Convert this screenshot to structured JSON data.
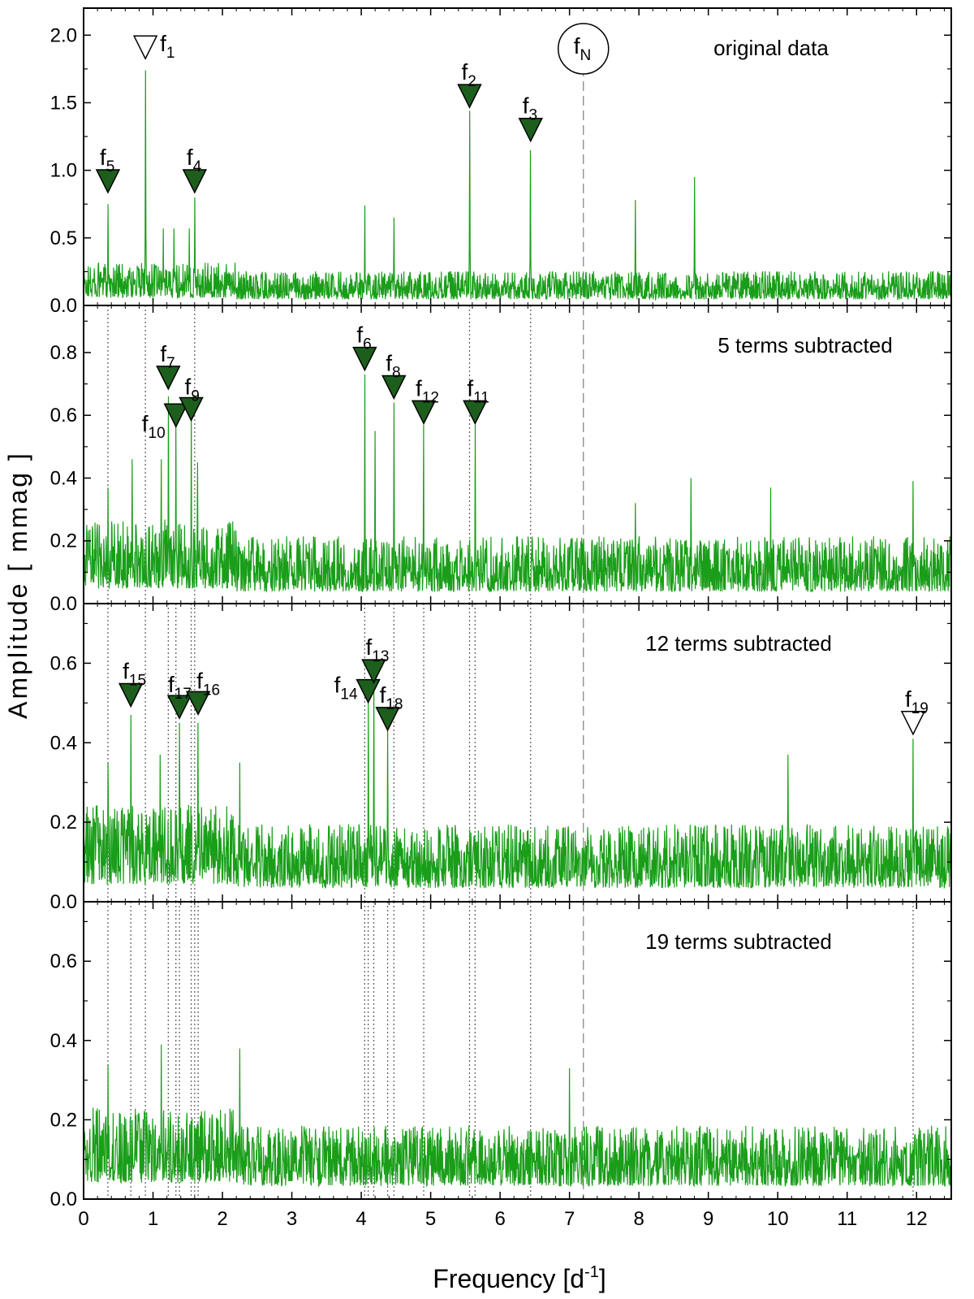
{
  "chart_data": {
    "type": "line",
    "xlabel_main": "Frequency [d",
    "xlabel_sup": "-1",
    "xlabel_end": "]",
    "ylabel": "Amplitude  [ mmag ]",
    "xlim": [
      0,
      12.5
    ],
    "x_ticks": [
      "0",
      "1",
      "2",
      "3",
      "4",
      "5",
      "6",
      "7",
      "8",
      "9",
      "10",
      "11",
      "12"
    ],
    "nyquist": {
      "x": 7.2,
      "label": "f",
      "sub": "N"
    },
    "panels": [
      {
        "label": "original data",
        "ylim": [
          0,
          2.2
        ],
        "y_ticks": [
          "0.0",
          "0.5",
          "1.0",
          "1.5",
          "2.0"
        ],
        "y_tick_values": [
          0,
          0.5,
          1.0,
          1.5,
          2.0
        ],
        "noise": 0.13,
        "peaks": [
          {
            "x": 0.35,
            "y": 0.75
          },
          {
            "x": 0.89,
            "y": 1.74
          },
          {
            "x": 1.6,
            "y": 0.8
          },
          {
            "x": 4.05,
            "y": 0.74
          },
          {
            "x": 4.47,
            "y": 0.65
          },
          {
            "x": 5.56,
            "y": 1.44
          },
          {
            "x": 6.44,
            "y": 1.15
          },
          {
            "x": 7.95,
            "y": 0.78
          },
          {
            "x": 8.8,
            "y": 0.95
          },
          {
            "x": 1.15,
            "y": 0.57
          },
          {
            "x": 1.3,
            "y": 0.57
          },
          {
            "x": 1.52,
            "y": 0.57
          }
        ],
        "markers": [
          {
            "name": "f",
            "sub": "5",
            "x": 0.35,
            "y": 0.92,
            "filled": true
          },
          {
            "name": "f",
            "sub": "1",
            "x": 0.89,
            "y": 1.91,
            "filled": false
          },
          {
            "name": "f",
            "sub": "4",
            "x": 1.6,
            "y": 0.92,
            "filled": true
          },
          {
            "name": "f",
            "sub": "2",
            "x": 5.56,
            "y": 1.55,
            "filled": true
          },
          {
            "name": "f",
            "sub": "3",
            "x": 6.44,
            "y": 1.3,
            "filled": true
          }
        ],
        "dotted_lines": []
      },
      {
        "label": "5 terms subtracted",
        "ylim": [
          0,
          0.95
        ],
        "y_ticks": [
          "0.0",
          "0.2",
          "0.4",
          "0.6",
          "0.8"
        ],
        "y_tick_values": [
          0,
          0.2,
          0.4,
          0.6,
          0.8
        ],
        "noise": 0.11,
        "peaks": [
          {
            "x": 0.35,
            "y": 0.37
          },
          {
            "x": 0.7,
            "y": 0.46
          },
          {
            "x": 1.12,
            "y": 0.46
          },
          {
            "x": 1.22,
            "y": 0.66
          },
          {
            "x": 1.33,
            "y": 0.57
          },
          {
            "x": 1.55,
            "y": 0.6
          },
          {
            "x": 1.64,
            "y": 0.45
          },
          {
            "x": 4.05,
            "y": 0.73
          },
          {
            "x": 4.2,
            "y": 0.55
          },
          {
            "x": 4.47,
            "y": 0.64
          },
          {
            "x": 4.9,
            "y": 0.57
          },
          {
            "x": 5.64,
            "y": 0.57
          },
          {
            "x": 7.95,
            "y": 0.32
          },
          {
            "x": 8.75,
            "y": 0.4
          },
          {
            "x": 9.9,
            "y": 0.37
          },
          {
            "x": 11.95,
            "y": 0.39
          }
        ],
        "markers": [
          {
            "name": "f",
            "sub": "7",
            "x": 1.22,
            "y": 0.72,
            "filled": true
          },
          {
            "name": "f",
            "sub": "10",
            "x": 1.33,
            "y": 0.6,
            "filled": true
          },
          {
            "name": "f",
            "sub": "9",
            "x": 1.55,
            "y": 0.62,
            "filled": true
          },
          {
            "name": "f",
            "sub": "6",
            "x": 4.05,
            "y": 0.78,
            "filled": true
          },
          {
            "name": "f",
            "sub": "8",
            "x": 4.47,
            "y": 0.69,
            "filled": true
          },
          {
            "name": "f",
            "sub": "12",
            "x": 4.9,
            "y": 0.61,
            "filled": true
          },
          {
            "name": "f",
            "sub": "11",
            "x": 5.64,
            "y": 0.61,
            "filled": true
          }
        ],
        "dotted_lines": [
          0.35,
          0.89,
          1.6,
          5.56,
          6.44
        ]
      },
      {
        "label": "12 terms subtracted",
        "ylim": [
          0,
          0.75
        ],
        "y_ticks": [
          "0.0",
          "0.2",
          "0.4",
          "0.6"
        ],
        "y_tick_values": [
          0,
          0.2,
          0.4,
          0.6
        ],
        "noise": 0.1,
        "peaks": [
          {
            "x": 0.35,
            "y": 0.35
          },
          {
            "x": 0.68,
            "y": 0.47
          },
          {
            "x": 1.1,
            "y": 0.37
          },
          {
            "x": 1.38,
            "y": 0.45
          },
          {
            "x": 1.65,
            "y": 0.45
          },
          {
            "x": 2.25,
            "y": 0.35
          },
          {
            "x": 4.1,
            "y": 0.5
          },
          {
            "x": 4.18,
            "y": 0.55
          },
          {
            "x": 4.38,
            "y": 0.43
          },
          {
            "x": 10.15,
            "y": 0.37
          },
          {
            "x": 11.95,
            "y": 0.41
          }
        ],
        "markers": [
          {
            "name": "f",
            "sub": "15",
            "x": 0.68,
            "y": 0.52,
            "filled": true
          },
          {
            "name": "f",
            "sub": "17",
            "x": 1.38,
            "y": 0.49,
            "filled": true
          },
          {
            "name": "f",
            "sub": "16",
            "x": 1.65,
            "y": 0.5,
            "filled": true
          },
          {
            "name": "f",
            "sub": "14",
            "x": 4.1,
            "y": 0.53,
            "filled": true
          },
          {
            "name": "f",
            "sub": "13",
            "x": 4.18,
            "y": 0.58,
            "filled": true
          },
          {
            "name": "f",
            "sub": "18",
            "x": 4.38,
            "y": 0.46,
            "filled": true
          },
          {
            "name": "f",
            "sub": "19",
            "x": 11.95,
            "y": 0.45,
            "filled": false
          }
        ],
        "dotted_lines": [
          0.35,
          0.89,
          1.6,
          5.56,
          6.44,
          1.22,
          1.33,
          1.55,
          4.05,
          4.47,
          4.9,
          5.64
        ]
      },
      {
        "label": "19 terms subtracted",
        "ylim": [
          0,
          0.75
        ],
        "y_ticks": [
          "0.0",
          "0.2",
          "0.4",
          "0.6"
        ],
        "y_tick_values": [
          0,
          0.2,
          0.4,
          0.6
        ],
        "noise": 0.095,
        "peaks": [
          {
            "x": 0.35,
            "y": 0.34
          },
          {
            "x": 1.12,
            "y": 0.39
          },
          {
            "x": 2.25,
            "y": 0.38
          },
          {
            "x": 7.0,
            "y": 0.33
          }
        ],
        "markers": [],
        "dotted_lines": [
          0.35,
          0.89,
          1.6,
          5.56,
          6.44,
          1.22,
          1.33,
          1.55,
          4.05,
          4.47,
          4.9,
          5.64,
          0.68,
          1.38,
          1.65,
          4.1,
          4.18,
          4.38,
          11.95
        ]
      }
    ],
    "colors": {
      "spectrum": "#1a9e1a",
      "marker_fill": "#1d5e1d",
      "axis": "#000000",
      "guide": "#666666"
    }
  }
}
